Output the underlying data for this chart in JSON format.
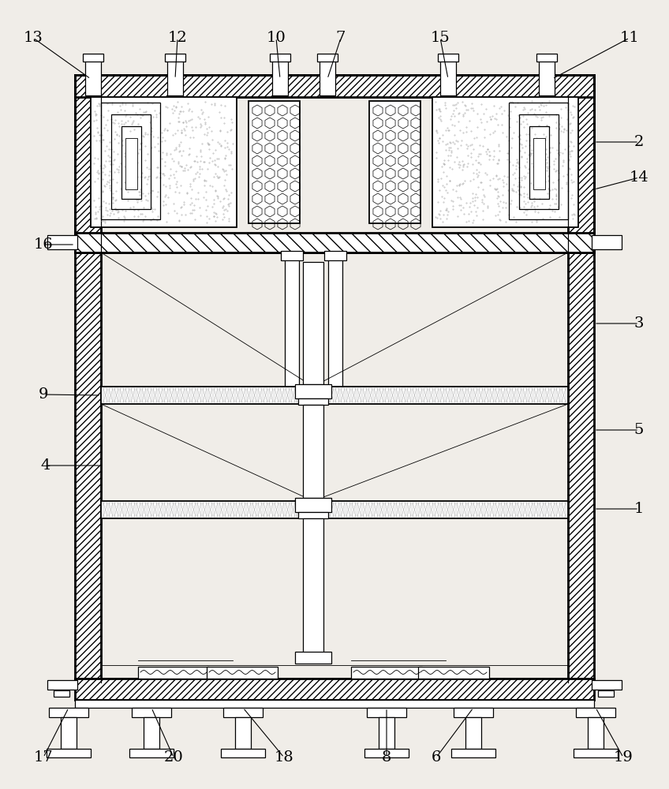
{
  "bg_color": "#f0ede8",
  "fig_width": 8.48,
  "fig_height": 10.0,
  "dpi": 100,
  "lw_thick": 2.0,
  "lw_med": 1.3,
  "lw_thin": 0.9,
  "lw_hair": 0.6
}
